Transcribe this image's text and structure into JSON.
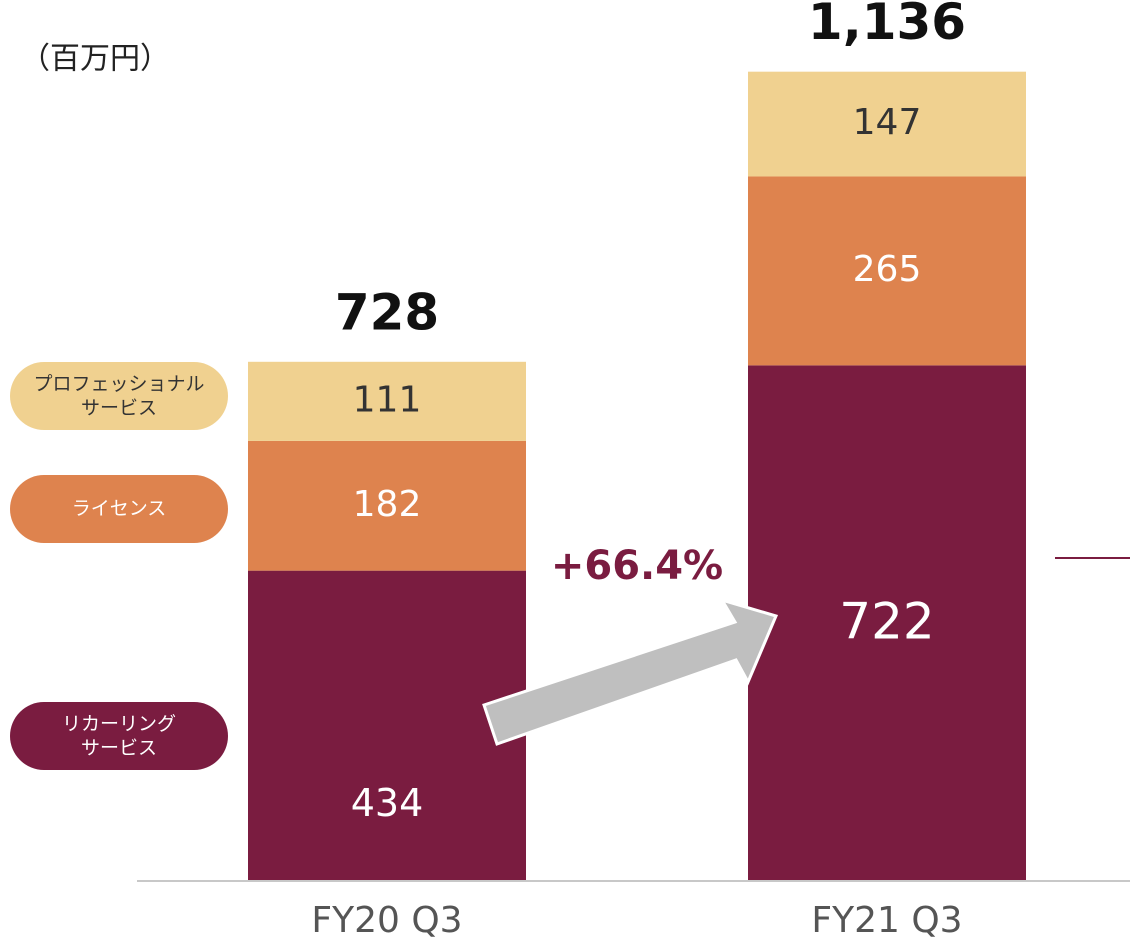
{
  "chart_data": {
    "type": "stacked_bar",
    "unit_label": "（百万円）",
    "categories": [
      "FY20 Q3",
      "FY21 Q3"
    ],
    "series": [
      {
        "name": "リカーリング\nサービス",
        "color": "#7a1c40",
        "text_color": "#ffffff",
        "values": [
          434,
          722
        ]
      },
      {
        "name": "ライセンス",
        "color": "#de834e",
        "text_color": "#ffffff",
        "values": [
          182,
          265
        ]
      },
      {
        "name": "プロフェッショナル\nサービス",
        "color": "#f0d190",
        "text_color": "#333333",
        "values": [
          111,
          147
        ]
      }
    ],
    "totals": [
      728,
      1136
    ],
    "totals_labels": [
      "728",
      "1,136"
    ],
    "annotation": "+66.4%",
    "ylim": [
      0,
      1250
    ]
  }
}
